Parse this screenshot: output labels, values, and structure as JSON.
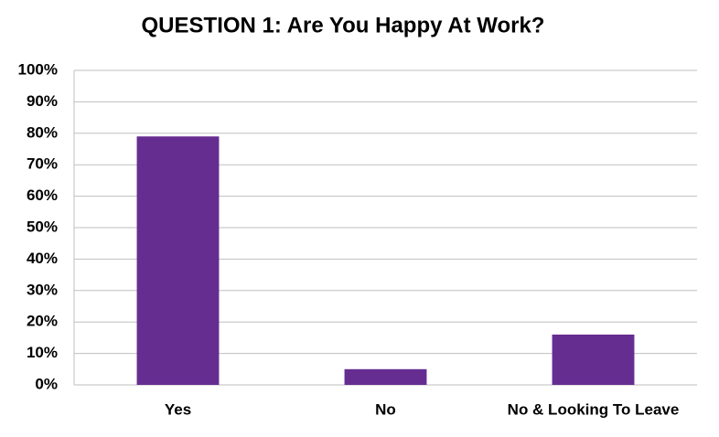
{
  "chart_data": {
    "type": "bar",
    "title": "QUESTION 1: Are You Happy At Work?",
    "categories": [
      "Yes",
      "No",
      "No & Looking To Leave"
    ],
    "values": [
      79,
      5,
      16
    ],
    "color": "#662d91",
    "ylim": [
      0,
      100
    ],
    "yticks": [
      {
        "value": 0,
        "label": "0%"
      },
      {
        "value": 10,
        "label": "10%"
      },
      {
        "value": 20,
        "label": "20%"
      },
      {
        "value": 30,
        "label": "30%"
      },
      {
        "value": 40,
        "label": "40%"
      },
      {
        "value": 50,
        "label": "50%"
      },
      {
        "value": 60,
        "label": "60%"
      },
      {
        "value": 70,
        "label": "70%"
      },
      {
        "value": 80,
        "label": "80%"
      },
      {
        "value": 90,
        "label": "90%"
      },
      {
        "value": 100,
        "label": "100%"
      }
    ],
    "grid": true
  }
}
